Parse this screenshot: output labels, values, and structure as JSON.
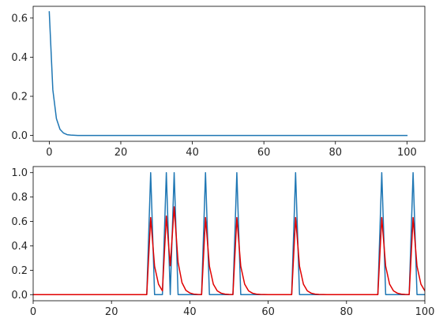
{
  "chart_data": [
    {
      "type": "line",
      "title": "",
      "xlabel": "",
      "ylabel": "",
      "xlim": [
        -4.5,
        105
      ],
      "ylim": [
        -0.03,
        0.66
      ],
      "xticks": [
        0,
        20,
        40,
        60,
        80,
        100
      ],
      "yticks": [
        0.0,
        0.2,
        0.4,
        0.6
      ],
      "xtick_labels": [
        "0",
        "20",
        "40",
        "60",
        "80",
        "100"
      ],
      "ytick_labels": [
        "0.0",
        "0.2",
        "0.4",
        "0.6"
      ],
      "grid": false,
      "legend": "none",
      "series": [
        {
          "color": "#1f77b4",
          "x": [
            0,
            1,
            2,
            3,
            4,
            5,
            6,
            7,
            8,
            100
          ],
          "y": [
            0.632,
            0.233,
            0.086,
            0.031,
            0.012,
            0.004,
            0.0016,
            0.0006,
            0.0,
            0.0
          ]
        }
      ]
    },
    {
      "type": "line",
      "title": "",
      "xlabel": "",
      "ylabel": "",
      "xlim": [
        0,
        100
      ],
      "ylim": [
        -0.05,
        1.05
      ],
      "xticks": [
        0,
        20,
        40,
        60,
        80,
        100
      ],
      "yticks": [
        0.0,
        0.2,
        0.4,
        0.6,
        0.8,
        1.0
      ],
      "xtick_labels": [
        "0",
        "20",
        "40",
        "60",
        "80",
        "100"
      ],
      "ytick_labels": [
        "0.0",
        "0.2",
        "0.4",
        "0.6",
        "0.8",
        "1.0"
      ],
      "grid": false,
      "legend": "none",
      "spike_times": [
        30,
        34,
        36,
        44,
        52,
        67,
        89,
        97
      ],
      "series": [
        {
          "color": "#1f77b4",
          "kind": "spike_train",
          "peak": 1.0
        },
        {
          "color": "#e00000",
          "kind": "filtered_response",
          "kernel": [
            0.632,
            0.233,
            0.086,
            0.031,
            0.012,
            0.004,
            0.0016,
            0.0006
          ]
        }
      ]
    }
  ]
}
